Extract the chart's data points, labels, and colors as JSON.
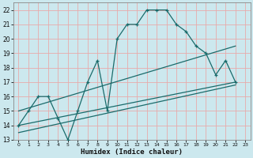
{
  "title": "",
  "xlabel": "Humidex (Indice chaleur)",
  "bg_color": "#cce8ee",
  "grid_color": "#e8aaaa",
  "line_color": "#1a6b6b",
  "xmin": -0.5,
  "xmax": 23.5,
  "ymin": 13,
  "ymax": 22.5,
  "curve1_x": [
    0,
    1,
    2,
    3,
    4,
    5,
    6,
    7,
    8,
    9,
    10,
    11,
    12,
    13,
    14,
    15,
    16,
    17,
    18,
    19,
    20,
    21,
    22
  ],
  "curve1_y": [
    14,
    15,
    16,
    16,
    14.5,
    13,
    15,
    17,
    18.5,
    15,
    20,
    21,
    21,
    22,
    22,
    22,
    21,
    20.5,
    19.5,
    19,
    17.5,
    18.5,
    17
  ],
  "line1_x": [
    0,
    22
  ],
  "line1_y": [
    15.0,
    19.5
  ],
  "line2_x": [
    0,
    22
  ],
  "line2_y": [
    14.0,
    17.0
  ],
  "line3_x": [
    0,
    22
  ],
  "line3_y": [
    13.5,
    16.8
  ],
  "yticks": [
    13,
    14,
    15,
    16,
    17,
    18,
    19,
    20,
    21,
    22
  ],
  "xticks": [
    0,
    1,
    2,
    3,
    4,
    5,
    6,
    7,
    8,
    9,
    10,
    11,
    12,
    13,
    14,
    15,
    16,
    17,
    18,
    19,
    20,
    21,
    22,
    23
  ]
}
